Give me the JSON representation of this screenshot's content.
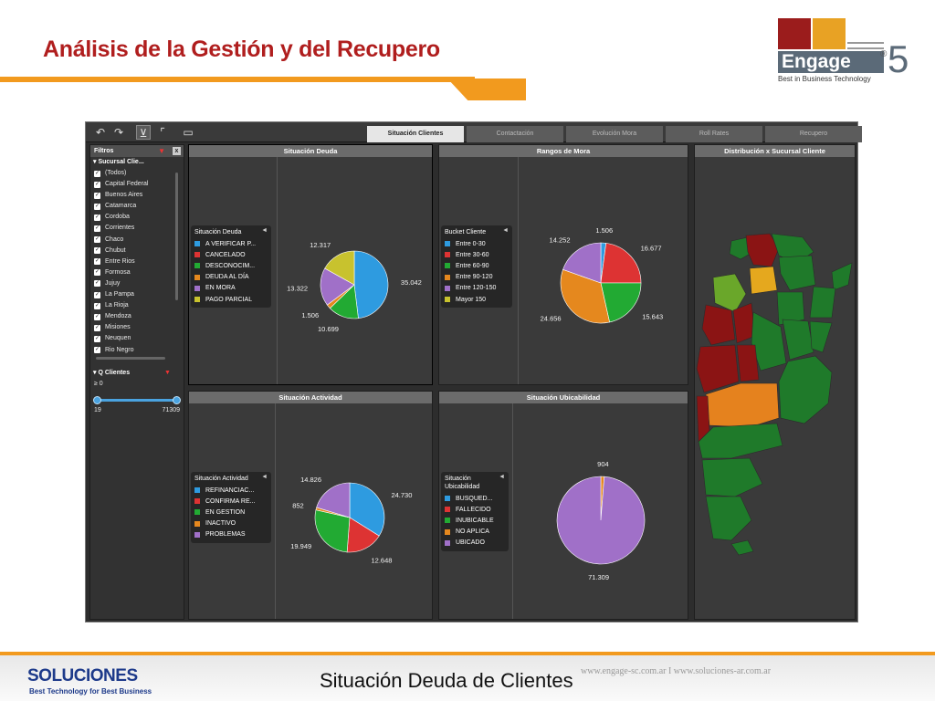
{
  "slide": {
    "title": "Análisis de la Gestión y del Recupero",
    "caption": "Situación Deuda de Clientes",
    "urls": "www.engage-sc.com.ar  I  www.soluciones-ar.com.ar"
  },
  "engage_logo": {
    "word": "Engage",
    "reg": "®",
    "number": "5",
    "tagline": "Best in Business Technology"
  },
  "soluciones_logo": {
    "name": "SOLUCIONES",
    "tagline": "Best Technology for Best Business"
  },
  "colors": {
    "title_red": "#b01e1e",
    "accent_orange": "#f29a1e",
    "blue": "#2e9be0",
    "red": "#dd3333",
    "green": "#22aa33",
    "orange": "#e5881e",
    "purple": "#a070c8",
    "olive": "#c8c22e"
  },
  "toolbar": {
    "icons": [
      "undo-icon",
      "redo-icon",
      "filter-icon",
      "expand-icon",
      "comment-icon"
    ],
    "tabs": [
      {
        "label": "Situación Clientes",
        "active": true
      },
      {
        "label": "Contactación",
        "active": false
      },
      {
        "label": "Evolución Mora",
        "active": false
      },
      {
        "label": "Roll Rates",
        "active": false
      },
      {
        "label": "Recupero",
        "active": false
      }
    ]
  },
  "filters": {
    "title": "Filtros",
    "close": "x",
    "sucursal_header": "Sucursal Clie...",
    "items": [
      "(Todos)",
      "Capital Federal",
      "Buenos Aires",
      "Catamarca",
      "Cordoba",
      "Corrientes",
      "Chaco",
      "Chubut",
      "Entre Rios",
      "Formosa",
      "Jujuy",
      "La Pampa",
      "La Rioja",
      "Mendoza",
      "Misiones",
      "Neuquen",
      "Rio Negro"
    ],
    "q_header": "Q Clientes",
    "q_value": "≥ 0",
    "q_min": "19",
    "q_max": "71309"
  },
  "panels": {
    "deuda": {
      "title": "Situación Deuda",
      "legend_title": "Situación Deuda",
      "chart_data": {
        "type": "pie",
        "categories": [
          "A VERIFICAR P...",
          "CANCELADO",
          "DESCONOCIM...",
          "DEUDA AL DÍA",
          "EN MORA",
          "PAGO PARCIAL"
        ],
        "values": [
          35042,
          0,
          10699,
          1506,
          13322,
          12317
        ],
        "labels": [
          "35.042",
          "",
          "10.699",
          "1.506",
          "13.322",
          "12.317"
        ],
        "colors": [
          "#2e9be0",
          "#dd3333",
          "#22aa33",
          "#e5881e",
          "#a070c8",
          "#c8c22e"
        ]
      }
    },
    "mora": {
      "title": "Rangos de Mora",
      "legend_title": "Bucket Cliente",
      "chart_data": {
        "type": "pie",
        "categories": [
          "Entre 0-30",
          "Entre 30-60",
          "Entre 60-90",
          "Entre 90-120",
          "Entre 120-150",
          "Mayor 150"
        ],
        "values": [
          1506,
          16677,
          15643,
          24656,
          14252,
          0
        ],
        "labels": [
          "1.506",
          "16.677",
          "15.643",
          "24.656",
          "14.252",
          ""
        ],
        "colors": [
          "#2e9be0",
          "#dd3333",
          "#22aa33",
          "#e5881e",
          "#a070c8",
          "#c8c22e"
        ]
      }
    },
    "actividad": {
      "title": "Situación Actividad",
      "legend_title": "Situación Actividad",
      "chart_data": {
        "type": "pie",
        "categories": [
          "REFINANCIAC...",
          "CONFIRMA RE...",
          "EN GESTION",
          "INACTIVO",
          "PROBLEMAS"
        ],
        "values": [
          24730,
          12648,
          19949,
          852,
          14826
        ],
        "labels": [
          "24.730",
          "12.648",
          "19.949",
          "852",
          "14.826"
        ],
        "colors": [
          "#2e9be0",
          "#dd3333",
          "#22aa33",
          "#e5881e",
          "#a070c8"
        ]
      }
    },
    "ubicabilidad": {
      "title": "Situación Ubicabilidad",
      "legend_title_1": "Situación",
      "legend_title_2": "Ubicabilidad",
      "chart_data": {
        "type": "pie",
        "categories": [
          "BUSQUED...",
          "FALLECIDO",
          "INUBICABLE",
          "NO APLICA",
          "UBICADO"
        ],
        "values": [
          0,
          0,
          0,
          904,
          71309
        ],
        "labels": [
          "",
          "",
          "",
          "904",
          "71.309"
        ],
        "colors": [
          "#2e9be0",
          "#dd3333",
          "#22aa33",
          "#e5881e",
          "#a070c8"
        ]
      }
    },
    "mapa": {
      "title": "Distribución x Sucursal Cliente"
    }
  }
}
